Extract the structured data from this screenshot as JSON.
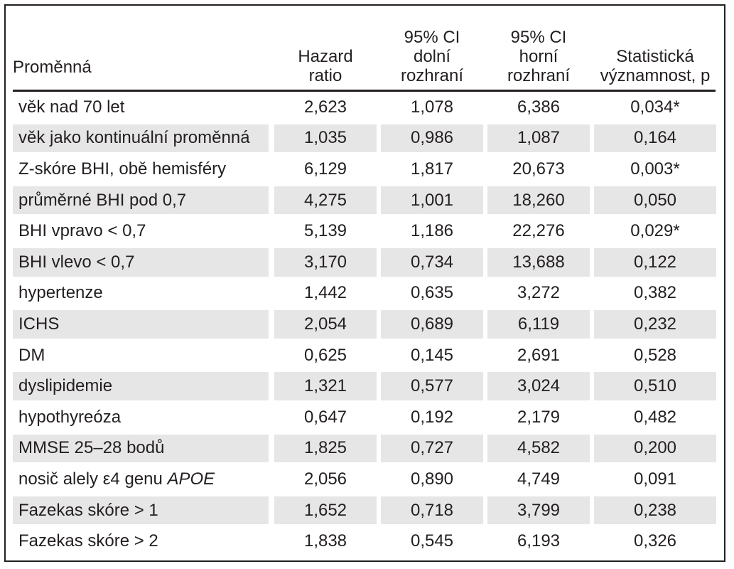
{
  "table": {
    "headers": {
      "variable": "Proměnná",
      "hazard_ratio": [
        "Hazard",
        "ratio"
      ],
      "ci_lower": [
        "95% CI",
        "dolní",
        "rozhraní"
      ],
      "ci_upper": [
        "95% CI",
        "horní",
        "rozhraní"
      ],
      "significance": [
        "Statistická",
        "významnost, p"
      ]
    },
    "rows": [
      {
        "variable": "věk nad 70 let",
        "hr": "2,623",
        "lower": "1,078",
        "upper": "6,386",
        "p": "0,034*"
      },
      {
        "variable": "věk jako kontinuální proměnná",
        "hr": "1,035",
        "lower": "0,986",
        "upper": "1,087",
        "p": "0,164"
      },
      {
        "variable": "Z-skóre BHI, obě hemisféry",
        "hr": "6,129",
        "lower": "1,817",
        "upper": "20,673",
        "p": "0,003*"
      },
      {
        "variable": "průměrné BHI pod 0,7",
        "hr": "4,275",
        "lower": "1,001",
        "upper": "18,260",
        "p": "0,050"
      },
      {
        "variable": "BHI vpravo < 0,7",
        "hr": "5,139",
        "lower": "1,186",
        "upper": "22,276",
        "p": "0,029*"
      },
      {
        "variable": "BHI vlevo < 0,7",
        "hr": "3,170",
        "lower": "0,734",
        "upper": "13,688",
        "p": "0,122"
      },
      {
        "variable": "hypertenze",
        "hr": "1,442",
        "lower": "0,635",
        "upper": "3,272",
        "p": "0,382"
      },
      {
        "variable": "ICHS",
        "hr": "2,054",
        "lower": "0,689",
        "upper": "6,119",
        "p": "0,232"
      },
      {
        "variable": "DM",
        "hr": "0,625",
        "lower": "0,145",
        "upper": "2,691",
        "p": "0,528"
      },
      {
        "variable": "dyslipidemie",
        "hr": "1,321",
        "lower": "0,577",
        "upper": "3,024",
        "p": "0,510"
      },
      {
        "variable": "hypothyreóza",
        "hr": "0,647",
        "lower": "0,192",
        "upper": "2,179",
        "p": "0,482"
      },
      {
        "variable": "MMSE 25–28 bodů",
        "hr": "1,825",
        "lower": "0,727",
        "upper": "4,582",
        "p": "0,200"
      },
      {
        "variable": "nosič alely ε4 genu ",
        "variable_italic": "APOE",
        "hr": "2,056",
        "lower": "0,890",
        "upper": "4,749",
        "p": "0,091"
      },
      {
        "variable": "Fazekas skóre > 1",
        "hr": "1,652",
        "lower": "0,718",
        "upper": "3,799",
        "p": "0,238"
      },
      {
        "variable": "Fazekas skóre > 2",
        "hr": "1,838",
        "lower": "0,545",
        "upper": "6,193",
        "p": "0,326"
      }
    ]
  },
  "colors": {
    "text": "#231f20",
    "row_shade": "#e7e6e6",
    "border": "#231f20"
  }
}
